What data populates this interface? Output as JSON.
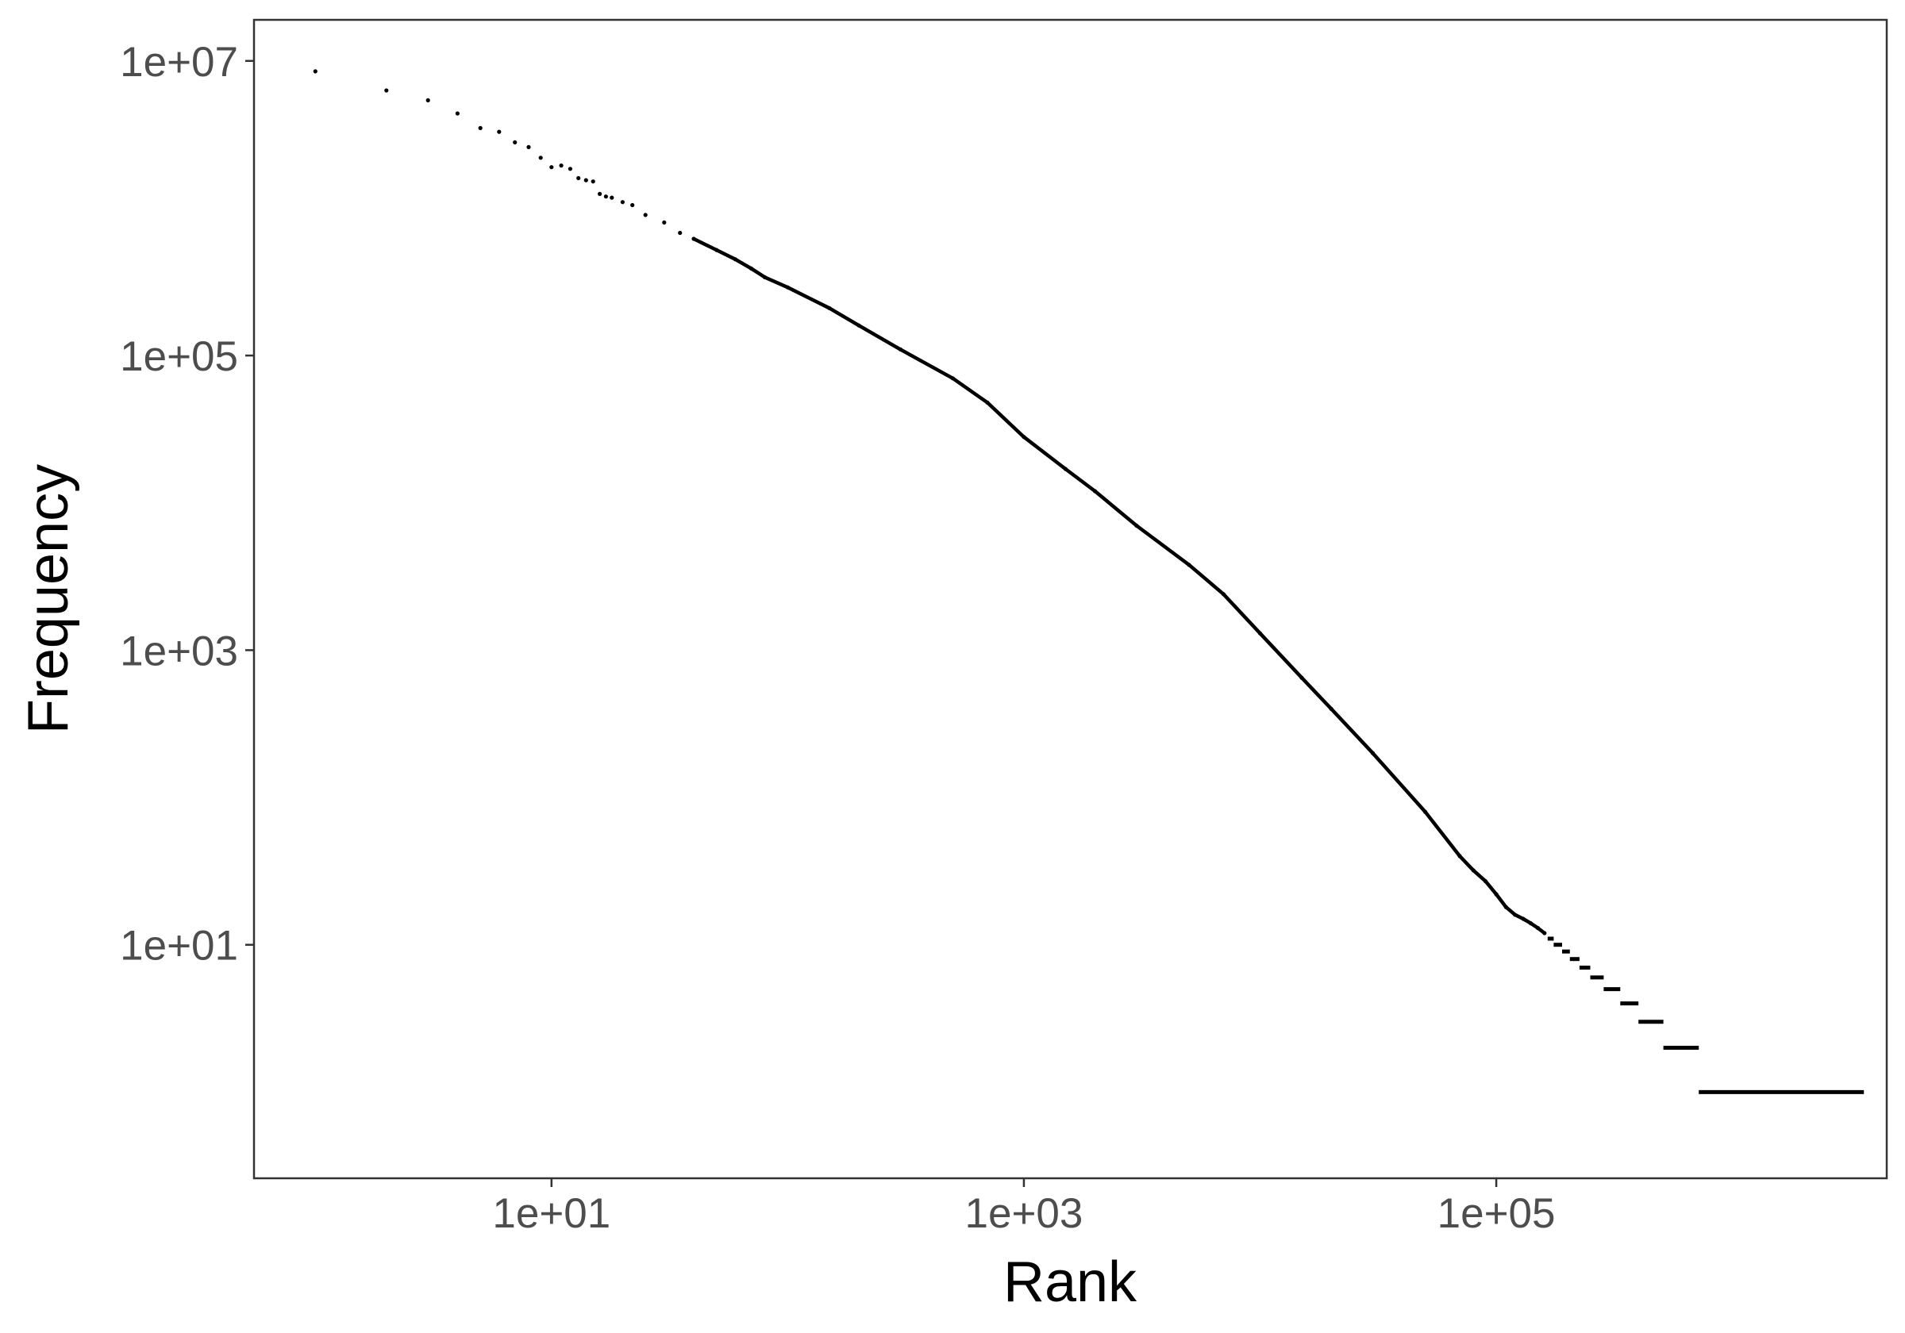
{
  "chart_data": {
    "type": "scatter",
    "title": "",
    "xlabel": "Rank",
    "ylabel": "Frequency",
    "xscale": "log10",
    "yscale": "log10",
    "xlim": [
      0.55,
      4500000
    ],
    "ylim": [
      0.26,
      19000000
    ],
    "x_ticks": [
      10,
      1000,
      100000
    ],
    "x_tick_labels": [
      "1e+01",
      "1e+03",
      "1e+05"
    ],
    "y_ticks": [
      10,
      1000,
      100000,
      10000000
    ],
    "y_tick_labels": [
      "1e+01",
      "1e+03",
      "1e+05",
      "1e+07"
    ],
    "grid": false,
    "legend": "none",
    "colors": {
      "points": "#000000",
      "panel_border": "#333333",
      "tick_labels": "#4d4d4d",
      "background": "#ffffff"
    },
    "series": [
      {
        "description": "Rank-frequency points (Zipf-like curve), read off the log-log axes",
        "x": [
          1,
          2,
          3,
          4,
          5,
          6,
          7,
          8,
          9,
          10,
          11,
          12,
          13,
          14,
          15,
          16,
          17,
          18,
          20,
          22,
          25,
          30,
          35,
          40,
          50,
          60,
          70,
          80,
          100,
          150,
          200,
          300,
          500,
          700,
          1000,
          1500,
          2000,
          3000,
          5000,
          7000,
          10000,
          15000,
          20000,
          30000,
          50000,
          70000,
          80000,
          90000,
          100000,
          110000,
          120000,
          130000,
          140000,
          150000,
          160000
        ],
        "y": [
          8500000,
          6300000,
          5400000,
          4400000,
          3500000,
          3300000,
          2800000,
          2600000,
          2200000,
          1900000,
          1950000,
          1850000,
          1600000,
          1550000,
          1520000,
          1250000,
          1200000,
          1180000,
          1100000,
          1050000,
          900000,
          800000,
          680000,
          620000,
          520000,
          450000,
          390000,
          340000,
          290000,
          210000,
          160000,
          110000,
          70000,
          48000,
          28000,
          17000,
          12000,
          7000,
          3800,
          2400,
          1300,
          650,
          400,
          200,
          80,
          40,
          32,
          27,
          22,
          18,
          16,
          15,
          14,
          13,
          12
        ]
      },
      {
        "description": "Low-frequency plateaus (horizontal runs of tied ranks)",
        "segments": [
          {
            "y": 11,
            "x_start": 165000,
            "x_end": 175000
          },
          {
            "y": 10,
            "x_start": 175000,
            "x_end": 190000
          },
          {
            "y": 9,
            "x_start": 190000,
            "x_end": 205000
          },
          {
            "y": 8,
            "x_start": 205000,
            "x_end": 225000
          },
          {
            "y": 7,
            "x_start": 225000,
            "x_end": 250000
          },
          {
            "y": 6,
            "x_start": 250000,
            "x_end": 285000
          },
          {
            "y": 5,
            "x_start": 285000,
            "x_end": 335000
          },
          {
            "y": 4,
            "x_start": 335000,
            "x_end": 400000
          },
          {
            "y": 3,
            "x_start": 400000,
            "x_end": 510000
          },
          {
            "y": 2,
            "x_start": 510000,
            "x_end": 720000
          },
          {
            "y": 1,
            "x_start": 720000,
            "x_end": 3600000
          }
        ]
      }
    ]
  }
}
